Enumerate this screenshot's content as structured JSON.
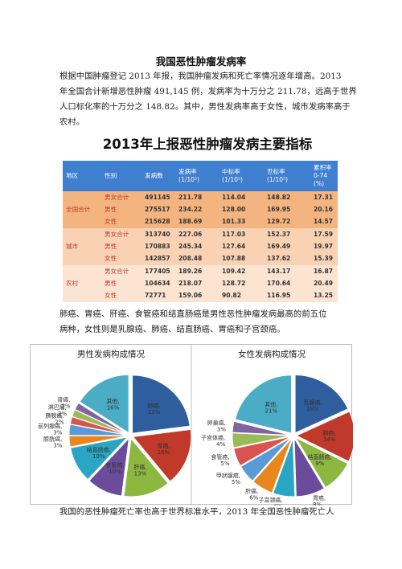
{
  "doc": {
    "title": "我国恶性肿瘤发病率",
    "para1": [
      "根据中国肿瘤登记 2013 年报，我国肿瘤发病和死亡率情况逐年增高。2013",
      "年全国合计新增恶性肿瘤 491,145 例，发病率为十万分之 211.78，远高于世界",
      "人口标化率的十万分之 148.82。其中，男性发病率高于女性，城市发病率高于",
      "农村。"
    ],
    "para2": [
      "肺癌、胃癌、肝癌、食管癌和结直肠癌是男性恶性肿瘤发病最高的前五位",
      "病种，女性则是乳腺癌、肺癌、结直肠癌、胃癌和子宫颈癌。"
    ],
    "para3": [
      "我国的恶性肿瘤死亡率也高于世界标准水平，2013 年全国恶性肿瘤死亡人"
    ]
  },
  "table": {
    "title": "2013年上报恶性肿瘤发病主要指标",
    "headers": [
      "地区",
      "性别",
      "发病数",
      "发病率\n(1/10⁵)",
      "中标率\n(1/10⁵)",
      "世标率\n(1/10⁵)",
      "累积率\n0-74\n(%)"
    ],
    "groups": [
      {
        "region": "全国合计",
        "rows": [
          {
            "sex": "男女合计",
            "cases": "491145",
            "incidence": "211.78",
            "china_std": "114.04",
            "world_std": "148.82",
            "cumulative": "17.31"
          },
          {
            "sex": "男性",
            "cases": "275517",
            "incidence": "234.22",
            "china_std": "128.00",
            "world_std": "169.95",
            "cumulative": "20.16"
          },
          {
            "sex": "女性",
            "cases": "215628",
            "incidence": "188.69",
            "china_std": "101.33",
            "world_std": "129.72",
            "cumulative": "14.57"
          }
        ]
      },
      {
        "region": "城市",
        "rows": [
          {
            "sex": "男女合计",
            "cases": "313740",
            "incidence": "227.06",
            "china_std": "117.03",
            "world_std": "152.37",
            "cumulative": "17.59"
          },
          {
            "sex": "男性",
            "cases": "170883",
            "incidence": "245.34",
            "china_std": "127.64",
            "world_std": "169.49",
            "cumulative": "19.97"
          },
          {
            "sex": "女性",
            "cases": "142857",
            "incidence": "208.48",
            "china_std": "107.88",
            "world_std": "137.62",
            "cumulative": "15.39"
          }
        ]
      },
      {
        "region": "农村",
        "rows": [
          {
            "sex": "男女合计",
            "cases": "177405",
            "incidence": "189.26",
            "china_std": "109.42",
            "world_std": "143.17",
            "cumulative": "16.87"
          },
          {
            "sex": "男性",
            "cases": "104634",
            "incidence": "218.07",
            "china_std": "128.72",
            "world_std": "170.64",
            "cumulative": "20.49"
          },
          {
            "sex": "女性",
            "cases": "72771",
            "incidence": "159.06",
            "china_std": "90.82",
            "world_std": "116.95",
            "cumulative": "13.25"
          }
        ]
      }
    ]
  },
  "chart_data": [
    {
      "type": "pie",
      "title": "男性发病构成情况",
      "slices": [
        {
          "label": "肺癌, 23%",
          "value": 23,
          "color": "#2e5e9e"
        },
        {
          "label": "胃癌, 16%",
          "value": 16,
          "color": "#c0392b"
        },
        {
          "label": "肝癌, 13%",
          "value": 13,
          "color": "#8db83f"
        },
        {
          "label": "食管癌, 10%",
          "value": 10,
          "color": "#6b4c9a"
        },
        {
          "label": "结直肠癌, 10%",
          "value": 10,
          "color": "#2aa6c4"
        },
        {
          "label": "膀胱癌, 3%",
          "value": 3,
          "color": "#e8871e"
        },
        {
          "label": "前列腺癌, 3%",
          "value": 3,
          "color": "#5b9bd5"
        },
        {
          "label": "胰腺癌, 2%",
          "value": 2,
          "color": "#d9534f"
        },
        {
          "label": "淋巴瘤, 2%",
          "value": 2,
          "color": "#9bbb59"
        },
        {
          "label": "肾癌, 2%",
          "value": 2,
          "color": "#8064a2"
        },
        {
          "label": "其他, 16%",
          "value": 16,
          "color": "#4bacc6"
        }
      ]
    },
    {
      "type": "pie",
      "title": "女性发病构成情况",
      "slices": [
        {
          "label": "乳腺癌, 18%",
          "value": 18,
          "color": "#2e5e9e"
        },
        {
          "label": "肺癌, 14%",
          "value": 14,
          "color": "#c0392b"
        },
        {
          "label": "结直肠癌, 9%",
          "value": 9,
          "color": "#8db83f"
        },
        {
          "label": "胃癌, 8%",
          "value": 8,
          "color": "#6b4c9a"
        },
        {
          "label": "子宫颈癌, 6%",
          "value": 6,
          "color": "#2aa6c4"
        },
        {
          "label": "肝癌, 6%",
          "value": 6,
          "color": "#e8871e"
        },
        {
          "label": "甲状腺癌, 5%",
          "value": 5,
          "color": "#5b9bd5"
        },
        {
          "label": "食管癌, 5%",
          "value": 5,
          "color": "#d9534f"
        },
        {
          "label": "子宫体癌, 4%",
          "value": 4,
          "color": "#9bbb59"
        },
        {
          "label": "卵巢癌, 3%",
          "value": 3,
          "color": "#8064a2"
        },
        {
          "label": "其他, 21%",
          "value": 21,
          "color": "#4bacc6"
        }
      ]
    }
  ]
}
